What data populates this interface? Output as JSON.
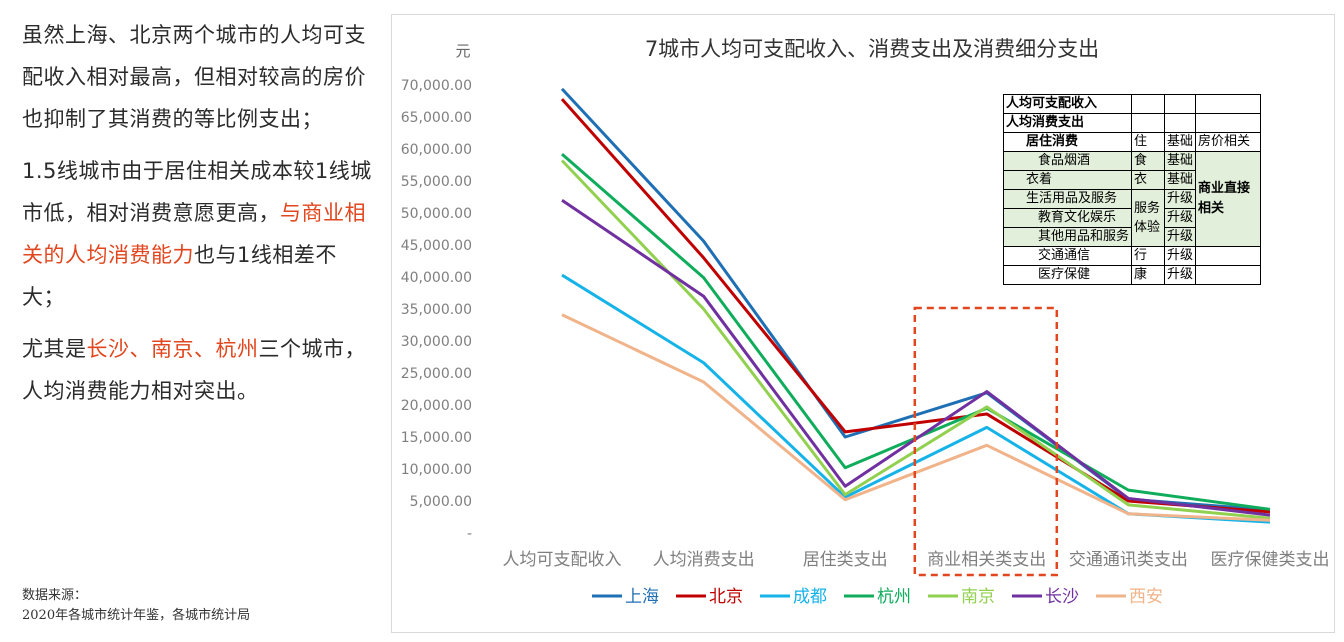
{
  "left_text": {
    "p1": "虽然上海、北京两个城市的人均可支配收入相对最高，但相对较高的房价也抑制了其消费的等比例支出；",
    "p2_a": "1.5线城市由于居住相关成本较1线城市低，相对消费意愿更高，",
    "p2_hl": "与商业相关的人均消费能力",
    "p2_b": "也与1线相差不大；",
    "p3_a": "尤其是",
    "p3_hl": "长沙、南京、杭州",
    "p3_b": "三个城市，人均消费能力相对突出。"
  },
  "source": {
    "label": "数据来源：",
    "text": "2020年各城市统计年鉴，各城市统计局"
  },
  "chart_data": {
    "type": "line",
    "title": "7城市人均可支配收入、消费支出及消费细分支出",
    "ylabel": "元",
    "ylim": [
      0,
      70000
    ],
    "yticks": [
      "-",
      "5,000.00",
      "10,000.00",
      "15,000.00",
      "20,000.00",
      "25,000.00",
      "30,000.00",
      "35,000.00",
      "40,000.00",
      "45,000.00",
      "50,000.00",
      "55,000.00",
      "60,000.00",
      "65,000.00",
      "70,000.00"
    ],
    "categories": [
      "人均可支配收入",
      "人均消费支出",
      "居住类支出",
      "商业相关类支出",
      "交通通讯类支出",
      "医疗保健类支出"
    ],
    "series": [
      {
        "name": "上海",
        "color": "#1f6fb5",
        "values": [
          69400,
          45600,
          15000,
          21900,
          5300,
          3600
        ]
      },
      {
        "name": "北京",
        "color": "#c00000",
        "values": [
          67800,
          43000,
          15800,
          18600,
          5000,
          3300
        ]
      },
      {
        "name": "成都",
        "color": "#16b3e8",
        "values": [
          40300,
          26600,
          5600,
          16500,
          3000,
          1700
        ]
      },
      {
        "name": "杭州",
        "color": "#0fad5b",
        "values": [
          59200,
          39900,
          10200,
          19500,
          6700,
          3700
        ]
      },
      {
        "name": "南京",
        "color": "#92d050",
        "values": [
          58200,
          35000,
          6000,
          19700,
          4400,
          2300
        ]
      },
      {
        "name": "长沙",
        "color": "#7030a0",
        "values": [
          52000,
          37000,
          7300,
          22100,
          5400,
          2800
        ]
      },
      {
        "name": "西安",
        "color": "#f0b38a",
        "values": [
          34100,
          23600,
          5200,
          13700,
          3000,
          2000
        ]
      }
    ],
    "highlight_category": "商业相关类支出",
    "highlight_color": "#e2461e",
    "grid": false,
    "legend_position": "bottom"
  },
  "legend_table": {
    "rows": [
      [
        "人均可支配收入",
        "",
        "",
        ""
      ],
      [
        "人均消费支出",
        "",
        "",
        ""
      ],
      [
        "居住消费",
        "住",
        "基础",
        "房价相关"
      ],
      [
        "食品烟酒",
        "食",
        "基础",
        "商业直接相关"
      ],
      [
        "衣着",
        "衣",
        "基础"
      ],
      [
        "生活用品及服务",
        "服务体验",
        "升级"
      ],
      [
        "教育文化娱乐",
        "升级"
      ],
      [
        "其他用品和服务",
        "升级"
      ],
      [
        "交通通信",
        "行",
        "升级",
        ""
      ],
      [
        "医疗保健",
        "康",
        "升级",
        ""
      ]
    ]
  }
}
